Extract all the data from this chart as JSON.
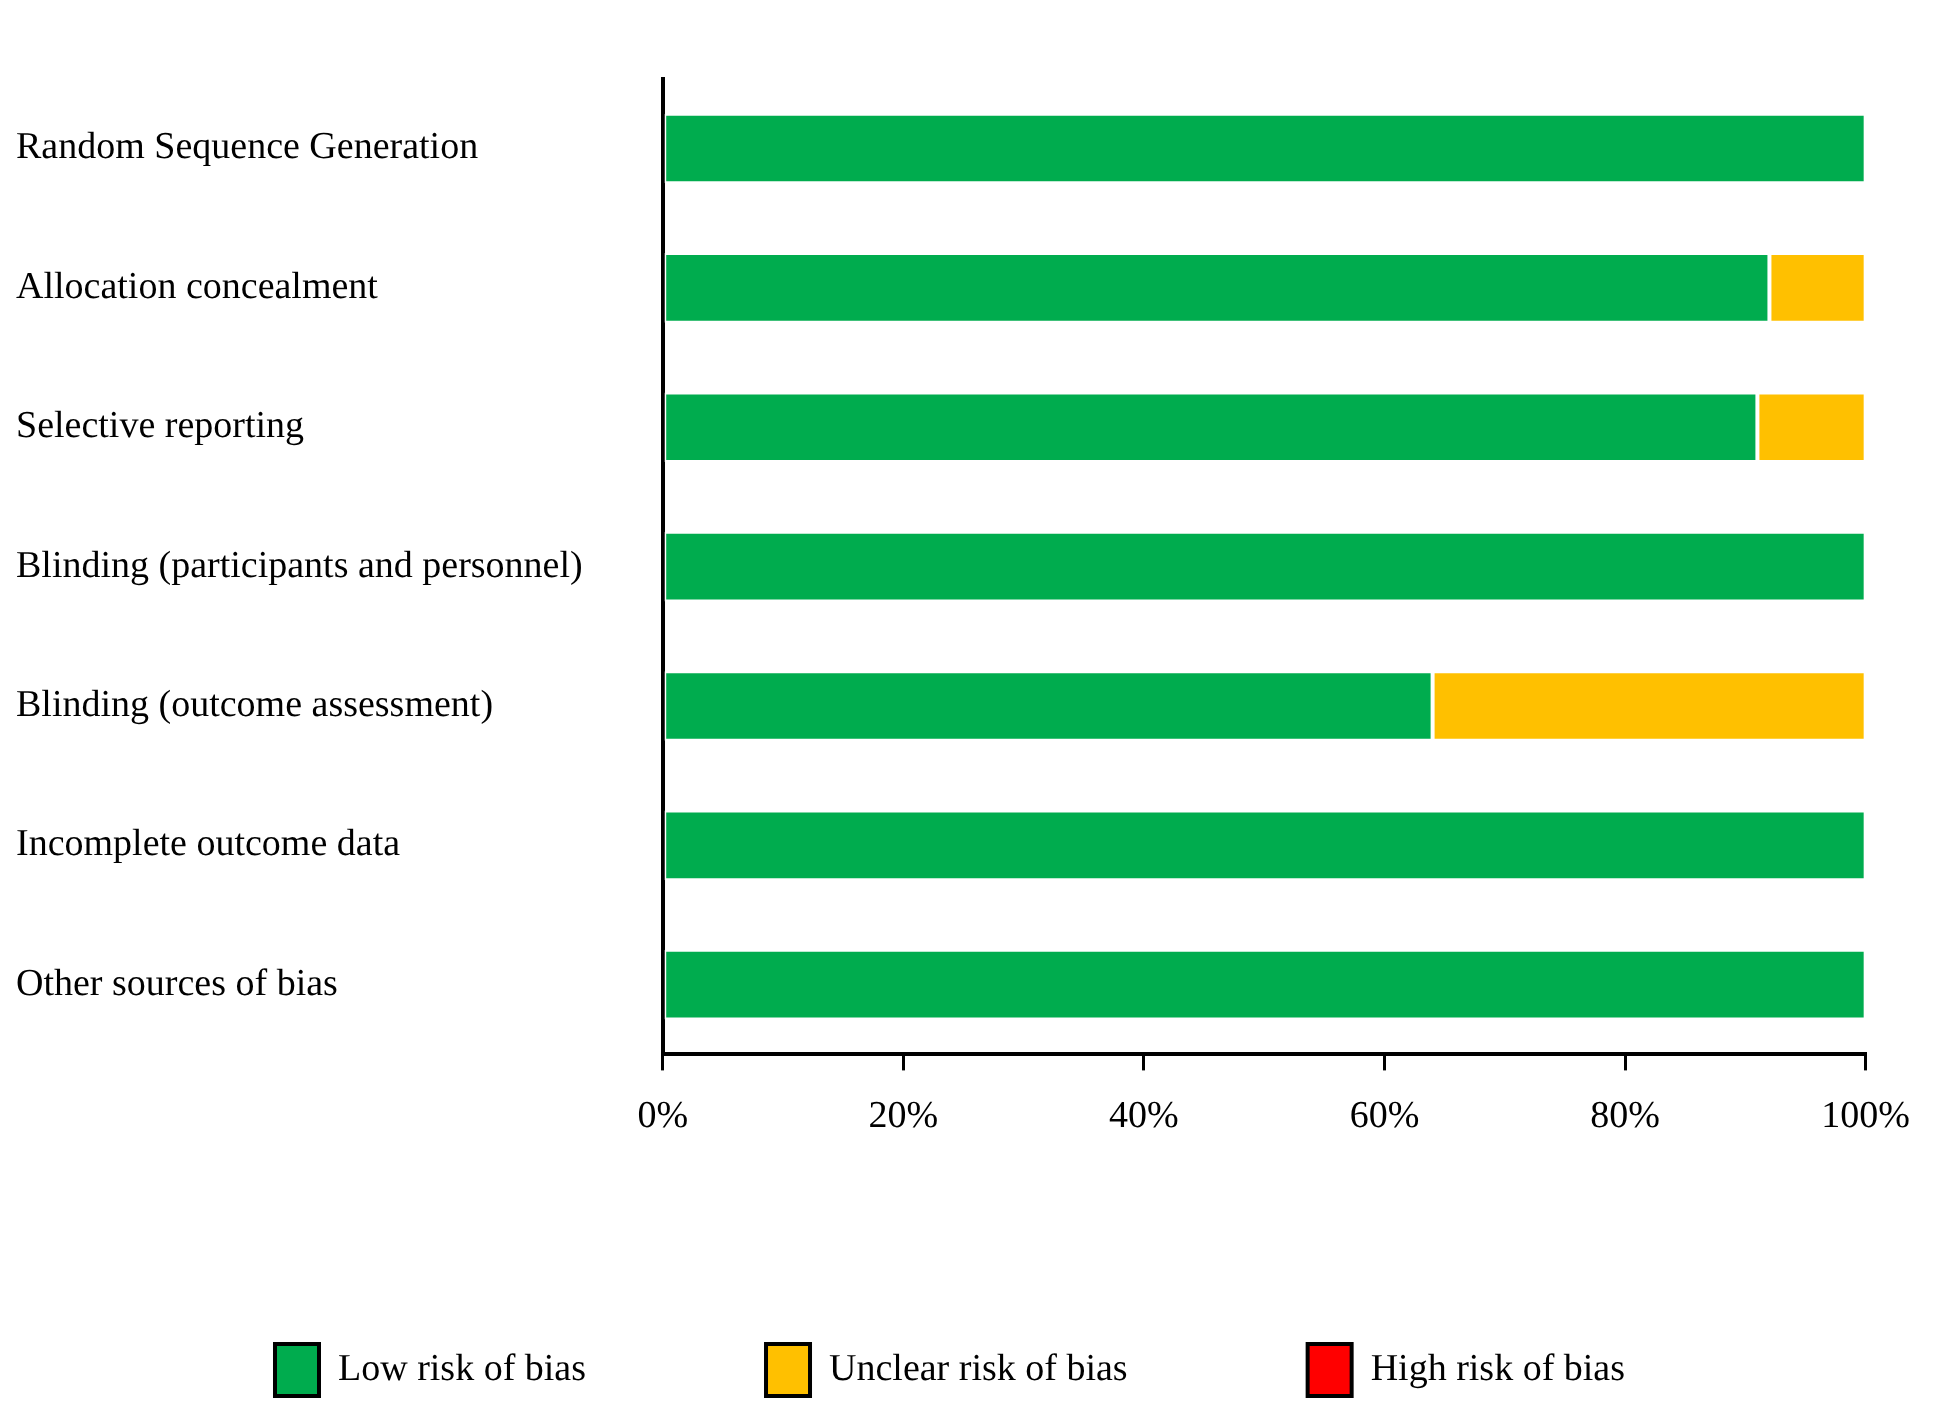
{
  "chart_data": {
    "type": "bar",
    "orientation": "horizontal",
    "stacked": true,
    "categories": [
      "Random Sequence Generation",
      "Allocation concealment",
      "Selective reporting",
      "Blinding (participants and personnel)",
      "Blinding (outcome assessment)",
      "Incomplete outcome data",
      "Other sources of bias"
    ],
    "series": [
      {
        "name": "Low risk of bias",
        "color": "#00ac4e",
        "values": [
          100,
          92,
          91,
          100,
          64,
          100,
          100
        ]
      },
      {
        "name": "Unclear risk of bias",
        "color": "#ffc000",
        "values": [
          0,
          8,
          9,
          0,
          36,
          0,
          0
        ]
      },
      {
        "name": "High risk of bias",
        "color": "#ff0000",
        "values": [
          0,
          0,
          0,
          0,
          0,
          0,
          0
        ]
      }
    ],
    "xlim": [
      0,
      100
    ],
    "xticks": [
      {
        "value": 0,
        "label": "0%"
      },
      {
        "value": 20,
        "label": "20%"
      },
      {
        "value": 40,
        "label": "40%"
      },
      {
        "value": 60,
        "label": "60%"
      },
      {
        "value": 80,
        "label": "80%"
      },
      {
        "value": 100,
        "label": "100%"
      }
    ],
    "grid": false,
    "legend": "bottom"
  }
}
